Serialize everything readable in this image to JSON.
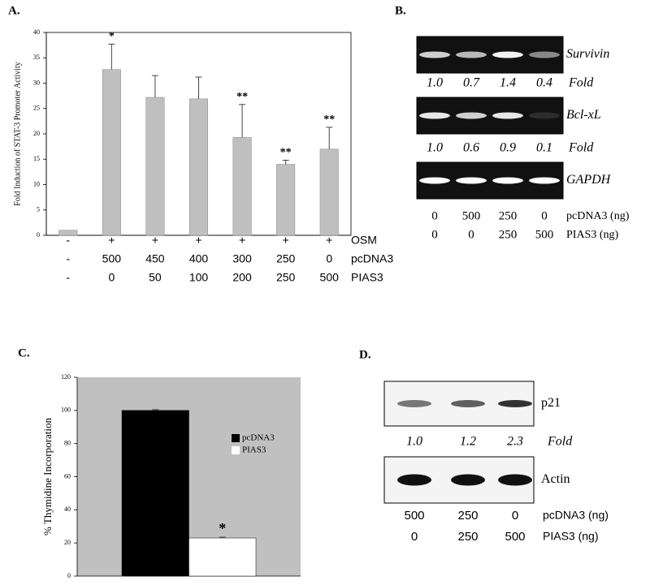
{
  "chart_data": [
    {
      "type": "bar",
      "panel_label": "A.",
      "ylabel": "Fold Induction of STAT-3 Promoter Activity",
      "categories": [
        null,
        null,
        null,
        null,
        null,
        null,
        null
      ],
      "values": [
        1,
        32.7,
        27.2,
        26.9,
        19.3,
        14,
        17
      ],
      "errors": [
        null,
        5,
        4.3,
        4.3,
        6.5,
        0.8,
        4.3
      ],
      "annotations": [
        null,
        "*",
        null,
        null,
        "**",
        "**",
        "**"
      ],
      "color": "#bfbfbf",
      "ylim": [
        0,
        40
      ],
      "yticks": [
        0,
        5,
        10,
        15,
        20,
        25,
        30,
        35,
        40
      ],
      "treatments": [
        {
          "label": "OSM",
          "values": [
            "-",
            "+",
            "+",
            "+",
            "+",
            "+",
            "+"
          ]
        },
        {
          "label": "pcDNA3",
          "values": [
            "-",
            500,
            450,
            400,
            300,
            250,
            0
          ]
        },
        {
          "label": "PIAS3",
          "values": [
            "-",
            0,
            50,
            100,
            200,
            250,
            500
          ]
        }
      ]
    },
    {
      "type": "bar",
      "panel_label": "C.",
      "ylabel": "% Thymidine Incorporation",
      "categories": [
        null
      ],
      "series": [
        {
          "name": "pcDNA3",
          "color": "#000000",
          "values": [
            100
          ],
          "errors": [
            0.5
          ]
        },
        {
          "name": "PIAS3",
          "color": "#ffffff",
          "values": [
            23
          ],
          "errors": [
            0.5
          ],
          "annotations": [
            "*"
          ]
        }
      ],
      "background": "#c0c0c0",
      "ylim": [
        0,
        120
      ],
      "yticks": [
        0,
        20,
        40,
        60,
        80,
        100,
        120
      ]
    }
  ],
  "blots": [
    {
      "panel_label": "B.",
      "style": "dark",
      "gels": [
        {
          "name": "Survivin",
          "fold": [
            "1.0",
            "0.7",
            "1.4",
            "0.4"
          ],
          "fold_label": "Fold"
        },
        {
          "name": "Bcl-xL",
          "fold": [
            "1.0",
            "0.6",
            "0.9",
            "0.1"
          ],
          "fold_label": "Fold"
        },
        {
          "name": "GAPDH"
        }
      ],
      "rows": [
        {
          "label": "pcDNA3 (ng)",
          "values": [
            0,
            500,
            250,
            0
          ]
        },
        {
          "label": "PIAS3 (ng)",
          "values": [
            0,
            0,
            250,
            500
          ]
        }
      ]
    },
    {
      "panel_label": "D.",
      "style": "light",
      "gels": [
        {
          "name": "p21",
          "fold": [
            "1.0",
            "1.2",
            "2.3"
          ],
          "fold_label": "Fold"
        },
        {
          "name": "Actin"
        }
      ],
      "rows": [
        {
          "label": "pcDNA3 (ng)",
          "values": [
            500,
            250,
            0
          ]
        },
        {
          "label": "PIAS3 (ng)",
          "values": [
            0,
            250,
            500
          ]
        }
      ]
    }
  ]
}
